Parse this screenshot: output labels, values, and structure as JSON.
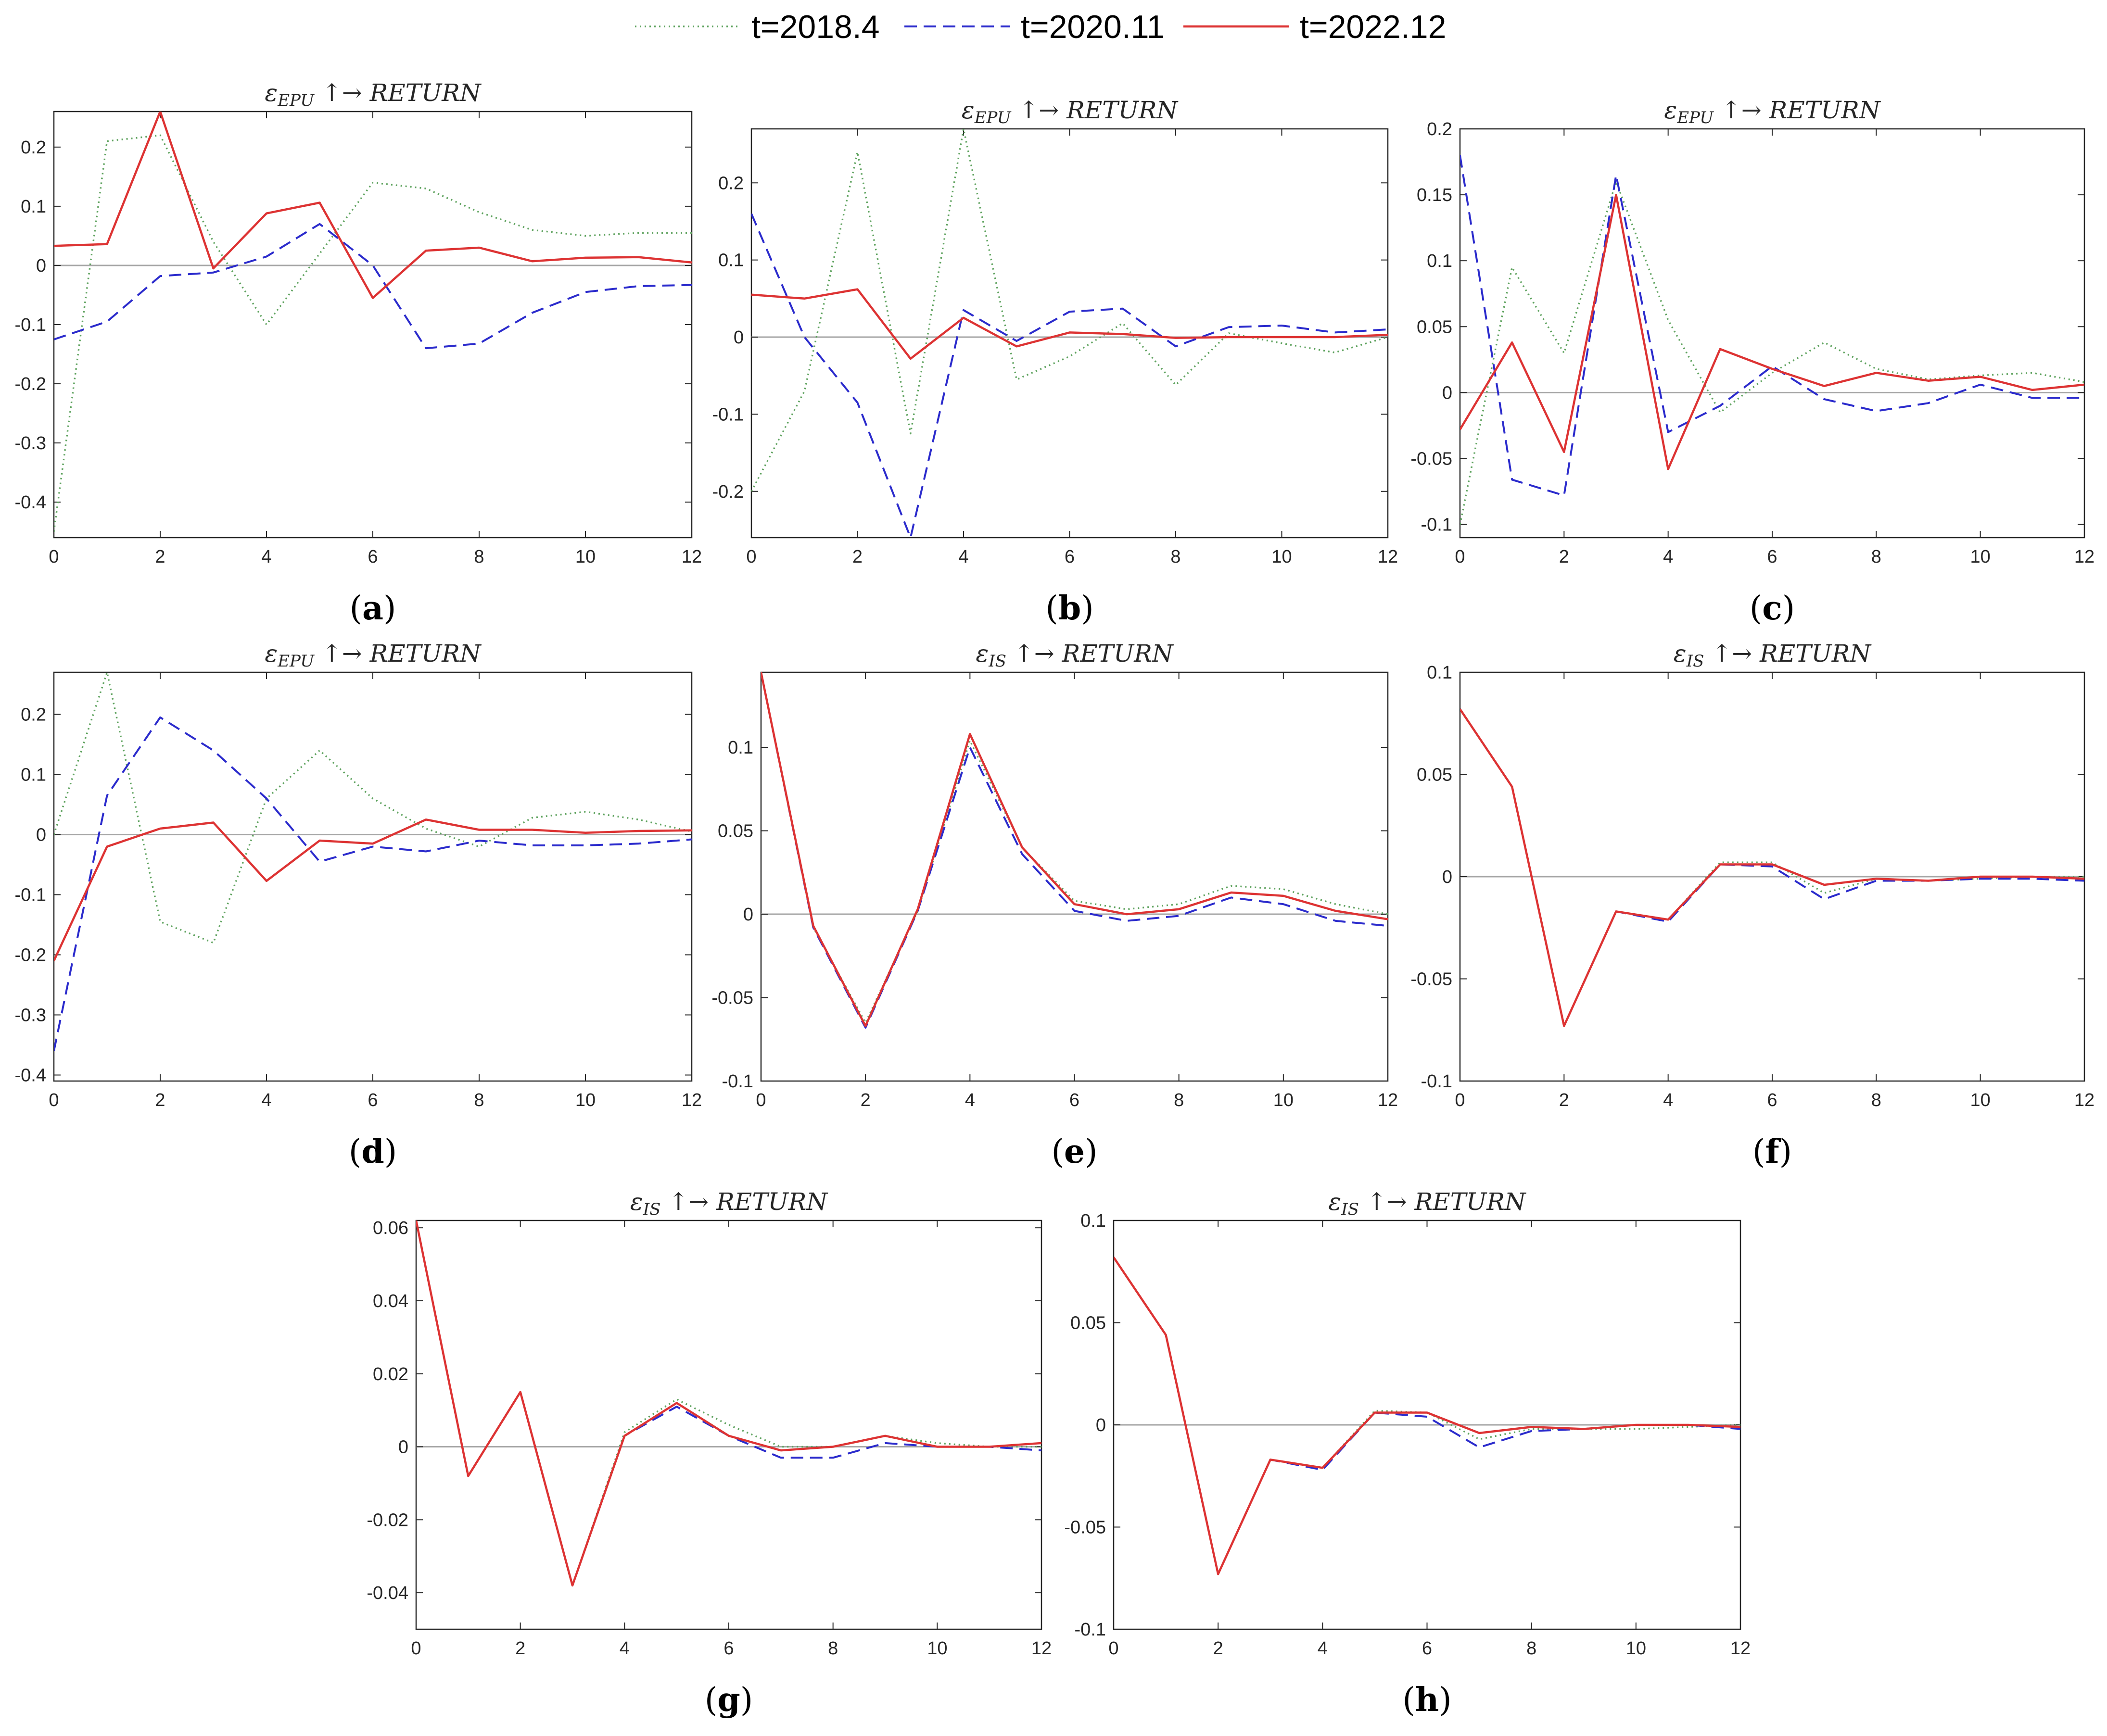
{
  "legend": [
    {
      "label": "t=2018.4",
      "color": "#5fa35f",
      "dash": "dotted"
    },
    {
      "label": "t=2020.11",
      "color": "#2b2bcc",
      "dash": "dashed"
    },
    {
      "label": "t=2022.12",
      "color": "#dd3333",
      "dash": "solid"
    }
  ],
  "chart_data": [
    {
      "type": "line",
      "panel": "a",
      "title": "ε_EPU ↑→ RETURN",
      "xlim": [
        0,
        12
      ],
      "ylim": [
        -0.46,
        0.26
      ],
      "xticks": [
        0,
        2,
        4,
        6,
        8,
        10,
        12
      ],
      "yticks": [
        0.2,
        0.1,
        0,
        -0.1,
        -0.2,
        -0.3,
        -0.4
      ],
      "ytick_labels": [
        "0.2",
        "0.1",
        "0",
        "-0.1",
        "-0.2",
        "-0.3",
        "-0.4"
      ],
      "x": [
        0,
        1,
        2,
        3,
        4,
        5,
        6,
        7,
        8,
        9,
        10,
        11,
        12
      ],
      "series": [
        {
          "name": "t=2018.4",
          "values": [
            -0.45,
            0.21,
            0.22,
            0.04,
            -0.1,
            0.02,
            0.14,
            0.13,
            0.09,
            0.06,
            0.05,
            0.055,
            0.055
          ]
        },
        {
          "name": "t=2020.11",
          "values": [
            -0.125,
            -0.095,
            -0.018,
            -0.012,
            0.015,
            0.07,
            0.0,
            -0.14,
            -0.132,
            -0.08,
            -0.045,
            -0.035,
            -0.033
          ]
        },
        {
          "name": "t=2022.12",
          "values": [
            0.033,
            0.036,
            0.26,
            -0.005,
            0.088,
            0.106,
            -0.055,
            0.025,
            0.03,
            0.007,
            0.013,
            0.014,
            0.005
          ]
        }
      ]
    },
    {
      "type": "line",
      "panel": "b",
      "title": "ε_EPU ↑→ RETURN",
      "xlim": [
        0,
        12
      ],
      "ylim": [
        -0.26,
        0.27
      ],
      "xticks": [
        0,
        2,
        4,
        6,
        8,
        10,
        12
      ],
      "yticks": [
        0.2,
        0.1,
        0,
        -0.1,
        -0.2
      ],
      "ytick_labels": [
        "0.2",
        "0.1",
        "0",
        "-0.1",
        "-0.2"
      ],
      "x": [
        0,
        1,
        2,
        3,
        4,
        5,
        6,
        7,
        8,
        9,
        10,
        11,
        12
      ],
      "series": [
        {
          "name": "t=2018.4",
          "values": [
            -0.2,
            -0.07,
            0.24,
            -0.125,
            0.27,
            -0.055,
            -0.025,
            0.018,
            -0.062,
            0.005,
            -0.008,
            -0.02,
            0.0
          ]
        },
        {
          "name": "t=2020.11",
          "values": [
            0.16,
            0.0,
            -0.085,
            -0.26,
            0.035,
            -0.005,
            0.033,
            0.037,
            -0.012,
            0.013,
            0.015,
            0.006,
            0.01
          ]
        },
        {
          "name": "t=2022.12",
          "values": [
            0.055,
            0.05,
            0.062,
            -0.028,
            0.025,
            -0.012,
            0.006,
            0.004,
            -0.001,
            0.0,
            0.0,
            0.0,
            0.003
          ]
        }
      ]
    },
    {
      "type": "line",
      "panel": "c",
      "title": "ε_EPU ↑→ RETURN",
      "xlim": [
        0,
        12
      ],
      "ylim": [
        -0.11,
        0.2
      ],
      "xticks": [
        0,
        2,
        4,
        6,
        8,
        10,
        12
      ],
      "yticks": [
        0.2,
        0.15,
        0.1,
        0.05,
        0,
        -0.05,
        -0.1
      ],
      "ytick_labels": [
        "0.2",
        "0.15",
        "0.1",
        "0.05",
        "0",
        "-0.05",
        "-0.1"
      ],
      "x": [
        0,
        1,
        2,
        3,
        4,
        5,
        6,
        7,
        8,
        9,
        10,
        11,
        12
      ],
      "series": [
        {
          "name": "t=2018.4",
          "values": [
            -0.1,
            0.095,
            0.03,
            0.16,
            0.055,
            -0.015,
            0.015,
            0.038,
            0.018,
            0.01,
            0.013,
            0.015,
            0.008
          ]
        },
        {
          "name": "t=2020.11",
          "values": [
            0.18,
            -0.066,
            -0.078,
            0.165,
            -0.03,
            -0.01,
            0.02,
            -0.005,
            -0.014,
            -0.008,
            0.006,
            -0.004,
            -0.004
          ]
        },
        {
          "name": "t=2022.12",
          "values": [
            -0.028,
            0.038,
            -0.045,
            0.15,
            -0.058,
            0.033,
            0.018,
            0.005,
            0.015,
            0.009,
            0.012,
            0.002,
            0.006
          ]
        }
      ]
    },
    {
      "type": "line",
      "panel": "d",
      "title": "ε_EPU ↑→ RETURN",
      "xlim": [
        0,
        12
      ],
      "ylim": [
        -0.41,
        0.27
      ],
      "xticks": [
        0,
        2,
        4,
        6,
        8,
        10,
        12
      ],
      "yticks": [
        0.2,
        0.1,
        0,
        -0.1,
        -0.2,
        -0.3,
        -0.4
      ],
      "ytick_labels": [
        "0.2",
        "0.1",
        "0",
        "-0.1",
        "-0.2",
        "-0.3",
        "-0.4"
      ],
      "x": [
        0,
        1,
        2,
        3,
        4,
        5,
        6,
        7,
        8,
        9,
        10,
        11,
        12
      ],
      "series": [
        {
          "name": "t=2018.4",
          "values": [
            0.0,
            0.27,
            -0.145,
            -0.18,
            0.06,
            0.14,
            0.06,
            0.01,
            -0.02,
            0.028,
            0.038,
            0.025,
            0.005
          ]
        },
        {
          "name": "t=2020.11",
          "values": [
            -0.36,
            0.065,
            0.195,
            0.14,
            0.06,
            -0.045,
            -0.02,
            -0.028,
            -0.01,
            -0.018,
            -0.018,
            -0.015,
            -0.008
          ]
        },
        {
          "name": "t=2022.12",
          "values": [
            -0.21,
            -0.02,
            0.01,
            0.02,
            -0.077,
            -0.01,
            -0.015,
            0.025,
            0.008,
            0.008,
            0.003,
            0.006,
            0.007
          ]
        }
      ]
    },
    {
      "type": "line",
      "panel": "e",
      "title": "ε_IS ↑→ RETURN",
      "xlim": [
        0,
        12
      ],
      "ylim": [
        -0.1,
        0.145
      ],
      "xticks": [
        0,
        2,
        4,
        6,
        8,
        10,
        12
      ],
      "yticks": [
        0.1,
        0.05,
        0,
        -0.05,
        -0.1
      ],
      "ytick_labels": [
        "0.1",
        "0.05",
        "0",
        "-0.05",
        "-0.1"
      ],
      "x": [
        0,
        1,
        2,
        3,
        4,
        5,
        6,
        7,
        8,
        9,
        10,
        11,
        12
      ],
      "series": [
        {
          "name": "t=2018.4",
          "values": [
            0.145,
            -0.008,
            -0.065,
            0.002,
            0.104,
            0.04,
            0.008,
            0.003,
            0.006,
            0.017,
            0.015,
            0.006,
            0.0
          ]
        },
        {
          "name": "t=2020.11",
          "values": [
            0.145,
            -0.008,
            -0.068,
            0.002,
            0.1,
            0.036,
            0.002,
            -0.004,
            -0.001,
            0.01,
            0.006,
            -0.004,
            -0.007
          ]
        },
        {
          "name": "t=2022.12",
          "values": [
            0.145,
            -0.007,
            -0.067,
            0.003,
            0.108,
            0.04,
            0.006,
            0.0,
            0.003,
            0.013,
            0.011,
            0.002,
            -0.003
          ]
        }
      ]
    },
    {
      "type": "line",
      "panel": "f",
      "title": "ε_IS ↑→ RETURN",
      "xlim": [
        0,
        12
      ],
      "ylim": [
        -0.1,
        0.1
      ],
      "xticks": [
        0,
        2,
        4,
        6,
        8,
        10,
        12
      ],
      "yticks": [
        0.1,
        0.05,
        0,
        -0.05,
        -0.1
      ],
      "ytick_labels": [
        "0.1",
        "0.05",
        "0",
        "-0.05",
        "-0.1"
      ],
      "x": [
        0,
        1,
        2,
        3,
        4,
        5,
        6,
        7,
        8,
        9,
        10,
        11,
        12
      ],
      "series": [
        {
          "name": "t=2018.4",
          "values": [
            0.082,
            0.044,
            -0.073,
            -0.017,
            -0.021,
            0.007,
            0.007,
            -0.008,
            -0.001,
            -0.002,
            -0.001,
            0.0,
            0.0
          ]
        },
        {
          "name": "t=2020.11",
          "values": [
            0.082,
            0.044,
            -0.073,
            -0.017,
            -0.022,
            0.006,
            0.005,
            -0.011,
            -0.002,
            -0.002,
            -0.001,
            -0.001,
            -0.002
          ]
        },
        {
          "name": "t=2022.12",
          "values": [
            0.082,
            0.044,
            -0.073,
            -0.017,
            -0.021,
            0.006,
            0.006,
            -0.004,
            -0.001,
            -0.002,
            0.0,
            0.0,
            -0.001
          ]
        }
      ]
    },
    {
      "type": "line",
      "panel": "g",
      "title": "ε_IS ↑→ RETURN",
      "xlim": [
        0,
        12
      ],
      "ylim": [
        -0.05,
        0.062
      ],
      "xticks": [
        0,
        2,
        4,
        6,
        8,
        10,
        12
      ],
      "yticks": [
        0.06,
        0.04,
        0.02,
        0,
        -0.02,
        -0.04
      ],
      "ytick_labels": [
        "0.06",
        "0.04",
        "0.02",
        "0",
        "-0.02",
        "-0.04"
      ],
      "x": [
        0,
        1,
        2,
        3,
        4,
        5,
        6,
        7,
        8,
        9,
        10,
        11,
        12
      ],
      "series": [
        {
          "name": "t=2018.4",
          "values": [
            0.062,
            -0.008,
            0.015,
            -0.038,
            0.004,
            0.013,
            0.006,
            0.0,
            0.0,
            0.003,
            0.001,
            0.0,
            0.0
          ]
        },
        {
          "name": "t=2020.11",
          "values": [
            0.062,
            -0.008,
            0.015,
            -0.038,
            0.003,
            0.011,
            0.003,
            -0.003,
            -0.003,
            0.001,
            0.0,
            0.0,
            -0.001
          ]
        },
        {
          "name": "t=2022.12",
          "values": [
            0.062,
            -0.008,
            0.015,
            -0.038,
            0.003,
            0.012,
            0.003,
            -0.001,
            0.0,
            0.003,
            0.0,
            0.0,
            0.001
          ]
        }
      ]
    },
    {
      "type": "line",
      "panel": "h",
      "title": "ε_IS ↑→ RETURN",
      "xlim": [
        0,
        12
      ],
      "ylim": [
        -0.1,
        0.1
      ],
      "xticks": [
        0,
        2,
        4,
        6,
        8,
        10,
        12
      ],
      "yticks": [
        0.1,
        0.05,
        0,
        -0.05,
        -0.1
      ],
      "ytick_labels": [
        "0.1",
        "0.05",
        "0",
        "-0.05",
        "-0.1"
      ],
      "x": [
        0,
        1,
        2,
        3,
        4,
        5,
        6,
        7,
        8,
        9,
        10,
        11,
        12
      ],
      "series": [
        {
          "name": "t=2018.4",
          "values": [
            0.082,
            0.044,
            -0.073,
            -0.017,
            -0.021,
            0.007,
            0.006,
            -0.007,
            -0.002,
            -0.002,
            -0.002,
            -0.001,
            0.0
          ]
        },
        {
          "name": "t=2020.11",
          "values": [
            0.082,
            0.044,
            -0.073,
            -0.017,
            -0.022,
            0.006,
            0.004,
            -0.011,
            -0.003,
            -0.002,
            0.0,
            0.0,
            -0.002
          ]
        },
        {
          "name": "t=2022.12",
          "values": [
            0.082,
            0.044,
            -0.073,
            -0.017,
            -0.021,
            0.006,
            0.006,
            -0.004,
            -0.001,
            -0.002,
            0.0,
            0.0,
            -0.001
          ]
        }
      ]
    }
  ],
  "subfigure_labels": [
    "a",
    "b",
    "c",
    "d",
    "e",
    "f",
    "g",
    "h"
  ]
}
